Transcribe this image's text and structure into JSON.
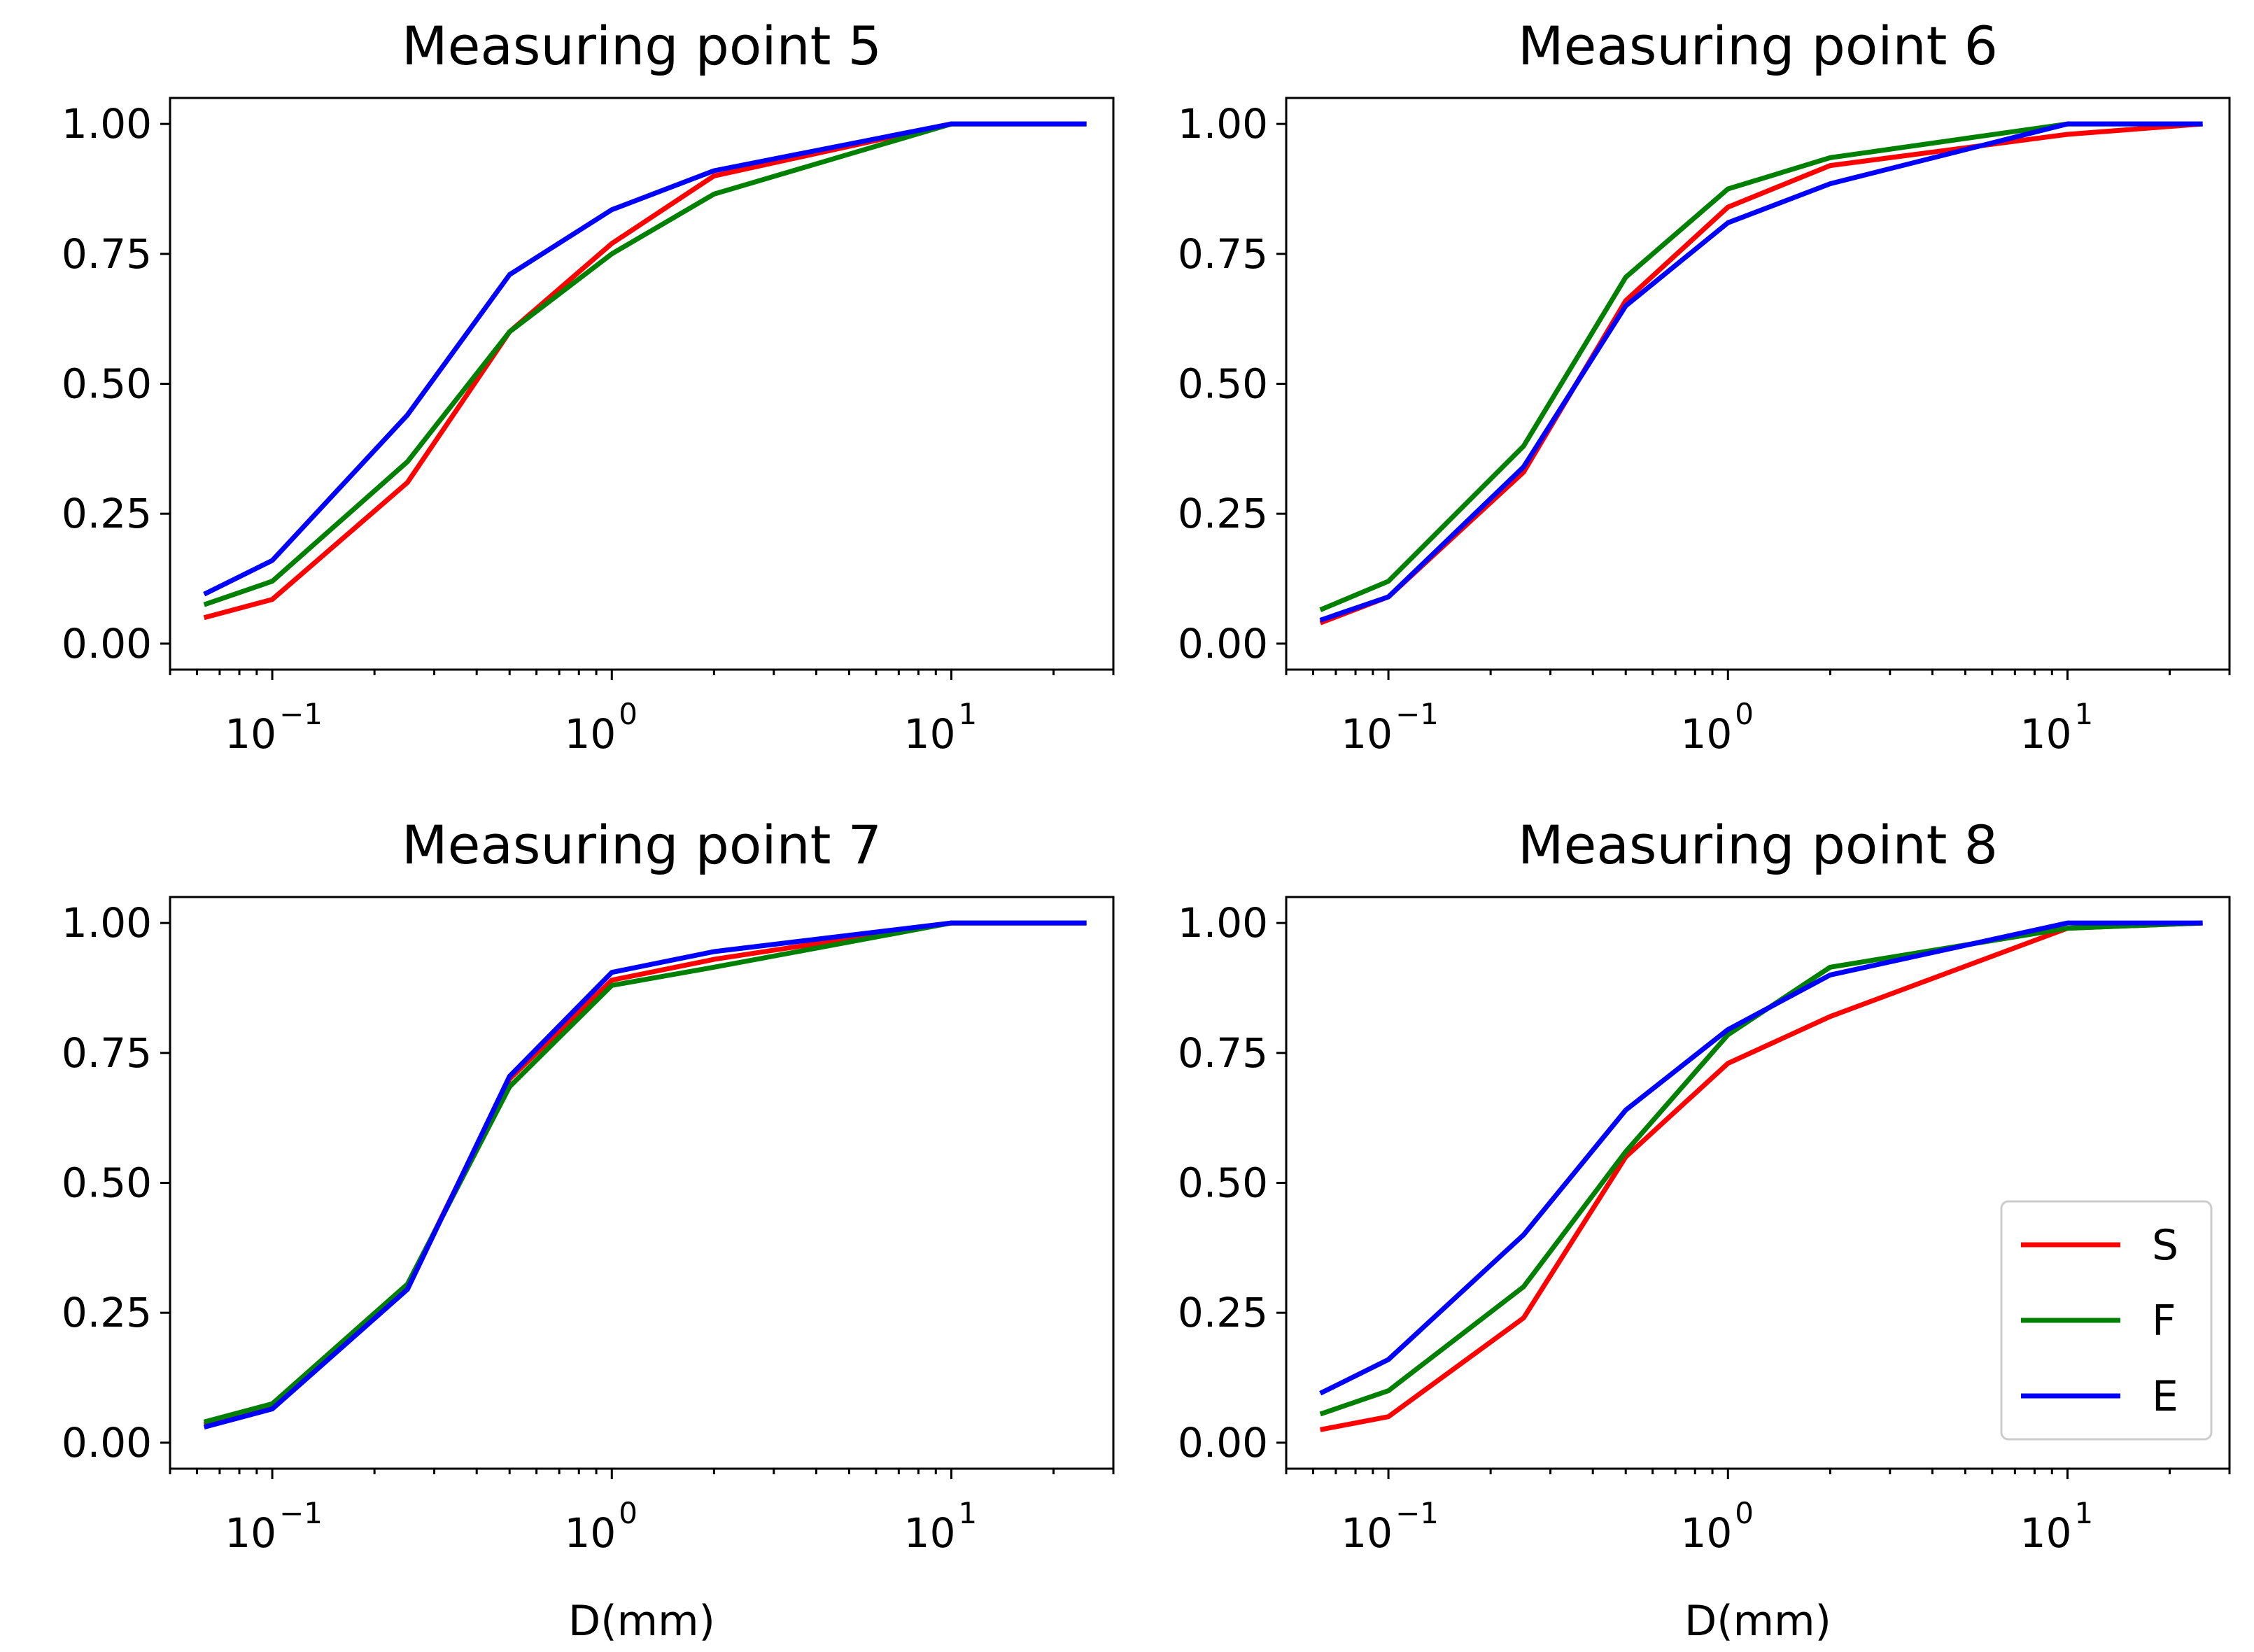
{
  "chart_data": [
    {
      "type": "line",
      "title": "Measuring point 5",
      "xlabel": "",
      "ylabel": "",
      "xscale": "log",
      "xlim": [
        0.05,
        30
      ],
      "ylim": [
        -0.05,
        1.05
      ],
      "x": [
        0.063,
        0.1,
        0.25,
        0.5,
        1,
        2,
        10,
        25
      ],
      "x_ticks": [
        {
          "base": "10",
          "exp": "−1",
          "value": 0.1
        },
        {
          "base": "10",
          "exp": "0",
          "value": 1
        },
        {
          "base": "10",
          "exp": "1",
          "value": 10
        }
      ],
      "y_ticks": [
        "0.00",
        "0.25",
        "0.50",
        "0.75",
        "1.00"
      ],
      "series": [
        {
          "name": "S",
          "color": "#ff0000",
          "values": [
            0.05,
            0.085,
            0.31,
            0.6,
            0.77,
            0.9,
            1.0,
            1.0
          ]
        },
        {
          "name": "F",
          "color": "#008000",
          "values": [
            0.075,
            0.12,
            0.35,
            0.6,
            0.75,
            0.865,
            1.0,
            1.0
          ]
        },
        {
          "name": "E",
          "color": "#0000ff",
          "values": [
            0.095,
            0.16,
            0.44,
            0.71,
            0.835,
            0.91,
            1.0,
            1.0
          ]
        }
      ]
    },
    {
      "type": "line",
      "title": "Measuring point 6",
      "xlabel": "",
      "ylabel": "",
      "xscale": "log",
      "xlim": [
        0.05,
        30
      ],
      "ylim": [
        -0.05,
        1.05
      ],
      "x": [
        0.063,
        0.1,
        0.25,
        0.5,
        1,
        2,
        10,
        25
      ],
      "x_ticks": [
        {
          "base": "10",
          "exp": "−1",
          "value": 0.1
        },
        {
          "base": "10",
          "exp": "0",
          "value": 1
        },
        {
          "base": "10",
          "exp": "1",
          "value": 10
        }
      ],
      "y_ticks": [
        "0.00",
        "0.25",
        "0.50",
        "0.75",
        "1.00"
      ],
      "series": [
        {
          "name": "S",
          "color": "#ff0000",
          "values": [
            0.04,
            0.09,
            0.33,
            0.66,
            0.84,
            0.92,
            0.98,
            1.0
          ]
        },
        {
          "name": "F",
          "color": "#008000",
          "values": [
            0.065,
            0.12,
            0.38,
            0.705,
            0.875,
            0.935,
            1.0,
            1.0
          ]
        },
        {
          "name": "E",
          "color": "#0000ff",
          "values": [
            0.045,
            0.09,
            0.34,
            0.65,
            0.81,
            0.885,
            1.0,
            1.0
          ]
        }
      ]
    },
    {
      "type": "line",
      "title": "Measuring point 7",
      "xlabel": "D(mm)",
      "ylabel": "",
      "xscale": "log",
      "xlim": [
        0.05,
        30
      ],
      "ylim": [
        -0.05,
        1.05
      ],
      "x": [
        0.063,
        0.1,
        0.25,
        0.5,
        1,
        2,
        10,
        25
      ],
      "x_ticks": [
        {
          "base": "10",
          "exp": "−1",
          "value": 0.1
        },
        {
          "base": "10",
          "exp": "0",
          "value": 1
        },
        {
          "base": "10",
          "exp": "1",
          "value": 10
        }
      ],
      "y_ticks": [
        "0.00",
        "0.25",
        "0.50",
        "0.75",
        "1.00"
      ],
      "series": [
        {
          "name": "S",
          "color": "#ff0000",
          "values": [
            0.035,
            0.07,
            0.3,
            0.7,
            0.89,
            0.93,
            1.0,
            1.0
          ]
        },
        {
          "name": "F",
          "color": "#008000",
          "values": [
            0.04,
            0.075,
            0.305,
            0.685,
            0.88,
            0.915,
            1.0,
            1.0
          ]
        },
        {
          "name": "E",
          "color": "#0000ff",
          "values": [
            0.03,
            0.065,
            0.295,
            0.705,
            0.905,
            0.945,
            1.0,
            1.0
          ]
        }
      ]
    },
    {
      "type": "line",
      "title": "Measuring point 8",
      "xlabel": "D(mm)",
      "ylabel": "",
      "xscale": "log",
      "xlim": [
        0.05,
        30
      ],
      "ylim": [
        -0.05,
        1.05
      ],
      "x": [
        0.063,
        0.1,
        0.25,
        0.5,
        1,
        2,
        10,
        25
      ],
      "x_ticks": [
        {
          "base": "10",
          "exp": "−1",
          "value": 0.1
        },
        {
          "base": "10",
          "exp": "0",
          "value": 1
        },
        {
          "base": "10",
          "exp": "1",
          "value": 10
        }
      ],
      "y_ticks": [
        "0.00",
        "0.25",
        "0.50",
        "0.75",
        "1.00"
      ],
      "legend": {
        "position": "lower-right",
        "entries": [
          "S",
          "F",
          "E"
        ]
      },
      "series": [
        {
          "name": "S",
          "color": "#ff0000",
          "values": [
            0.025,
            0.05,
            0.24,
            0.55,
            0.73,
            0.82,
            0.99,
            1.0
          ]
        },
        {
          "name": "F",
          "color": "#008000",
          "values": [
            0.055,
            0.1,
            0.3,
            0.56,
            0.785,
            0.915,
            0.99,
            1.0
          ]
        },
        {
          "name": "E",
          "color": "#0000ff",
          "values": [
            0.095,
            0.16,
            0.4,
            0.64,
            0.795,
            0.9,
            1.0,
            1.0
          ]
        }
      ]
    }
  ]
}
